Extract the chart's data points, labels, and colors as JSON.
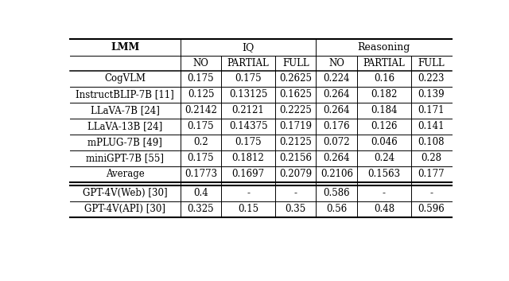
{
  "header_row1": [
    "LMM",
    "IQ",
    "Reasoning"
  ],
  "header_row2": [
    "",
    "NO",
    "PARTIAL",
    "FULL",
    "NO",
    "PARTIAL",
    "FULL"
  ],
  "rows": [
    [
      "CogVLM",
      "0.175",
      "0.175",
      "0.2625",
      "0.224",
      "0.16",
      "0.223"
    ],
    [
      "InstructBLIP-7B [11]",
      "0.125",
      "0.13125",
      "0.1625",
      "0.264",
      "0.182",
      "0.139"
    ],
    [
      "LLaVA-7B [24]",
      "0.2142",
      "0.2121",
      "0.2225",
      "0.264",
      "0.184",
      "0.171"
    ],
    [
      "LLaVA-13B [24]",
      "0.175",
      "0.14375",
      "0.1719",
      "0.176",
      "0.126",
      "0.141"
    ],
    [
      "mPLUG-7B [49]",
      "0.2",
      "0.175",
      "0.2125",
      "0.072",
      "0.046",
      "0.108"
    ],
    [
      "miniGPT-7B [55]",
      "0.175",
      "0.1812",
      "0.2156",
      "0.264",
      "0.24",
      "0.28"
    ],
    [
      "Average",
      "0.1773",
      "0.1697",
      "0.2079",
      "0.2106",
      "0.1563",
      "0.177"
    ]
  ],
  "rows_gpt": [
    [
      "GPT-4V(Web) [30]",
      "0.4",
      "-",
      "-",
      "0.586",
      "-",
      "-"
    ],
    [
      "GPT-4V(API) [30]",
      "0.325",
      "0.15",
      "0.35",
      "0.56",
      "0.48",
      "0.596"
    ]
  ],
  "background_color": "#ffffff",
  "text_color": "#000000",
  "font_size": 8.5,
  "font_family": "serif"
}
